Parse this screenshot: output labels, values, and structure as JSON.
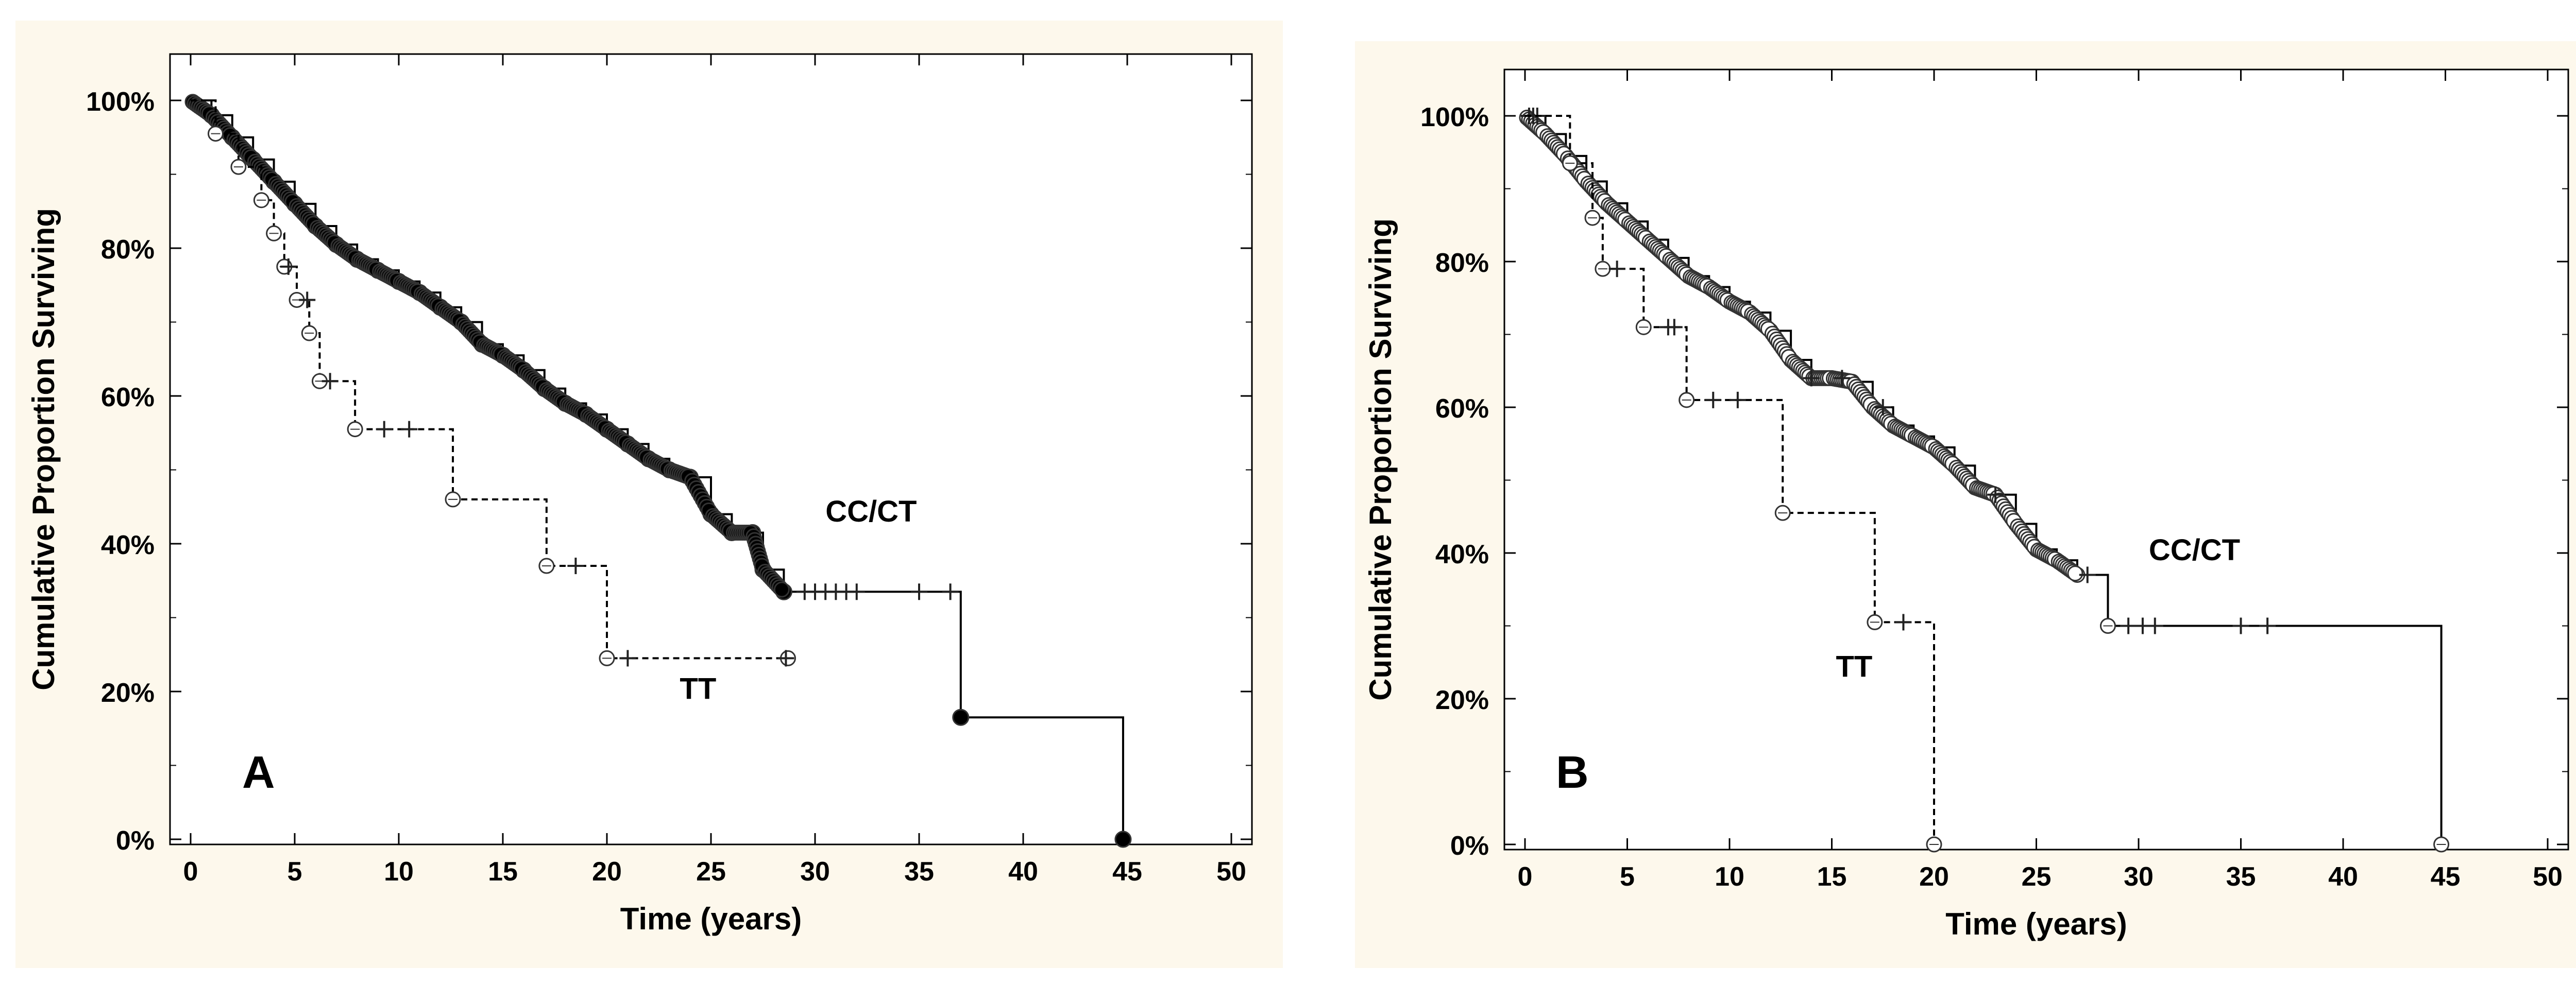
{
  "chart_data": [
    {
      "type": "line",
      "step": true,
      "panel_label": "A",
      "xlabel": "Time (years)",
      "ylabel": "Cumulative Proportion Surviving",
      "xlim": [
        0,
        50
      ],
      "ylim": [
        0,
        1.0
      ],
      "xticks": [
        "0",
        "5",
        "10",
        "15",
        "20",
        "25",
        "30",
        "35",
        "40",
        "45",
        "50"
      ],
      "yticks": [
        "0%",
        "20%",
        "40%",
        "60%",
        "80%",
        "100%"
      ],
      "background": "#fdf8ec",
      "series": [
        {
          "name": "CC/CT",
          "color": "#000000",
          "line": "solid",
          "marker": "filled-circle",
          "x": [
            0,
            1,
            2,
            3,
            4,
            5,
            6,
            7,
            8,
            9,
            10,
            11,
            12,
            13,
            14,
            15,
            16,
            17,
            18,
            19,
            20,
            21,
            22,
            23,
            24,
            25,
            26,
            27,
            27.5,
            28.5,
            37,
            44.8
          ],
          "y": [
            1.0,
            0.98,
            0.95,
            0.92,
            0.89,
            0.86,
            0.83,
            0.805,
            0.785,
            0.77,
            0.755,
            0.74,
            0.72,
            0.7,
            0.67,
            0.655,
            0.635,
            0.61,
            0.59,
            0.575,
            0.555,
            0.535,
            0.515,
            0.5,
            0.49,
            0.44,
            0.415,
            0.415,
            0.365,
            0.335,
            0.165,
            0.0
          ],
          "censored": [
            29.5,
            30,
            30.5,
            31,
            31.5,
            32,
            35,
            36.5
          ]
        },
        {
          "name": "TT",
          "color": "#000000",
          "line": "dashed",
          "marker": "open-circle",
          "x": [
            0,
            1.2,
            2.3,
            3.4,
            4.0,
            4.5,
            5.1,
            5.7,
            6.2,
            7.9,
            12.6,
            17.1,
            20.0,
            28.7
          ],
          "y": [
            1.0,
            0.955,
            0.91,
            0.865,
            0.82,
            0.775,
            0.73,
            0.685,
            0.62,
            0.555,
            0.46,
            0.37,
            0.245,
            0.245
          ],
          "censored": [
            4.7,
            5.6,
            6.7,
            9.3,
            10.5,
            18.5,
            21,
            28.6
          ]
        }
      ],
      "annotations": [
        {
          "text": "CC/CT",
          "x": 30.5,
          "y": 0.43
        },
        {
          "text": "TT",
          "x": 23.5,
          "y": 0.19
        }
      ]
    },
    {
      "type": "line",
      "step": true,
      "panel_label": "B",
      "xlabel": "Time (years)",
      "ylabel": "Cumulative Proportion Surviving",
      "xlim": [
        0,
        50
      ],
      "ylim": [
        0,
        1.0
      ],
      "xticks": [
        "0",
        "5",
        "10",
        "15",
        "20",
        "25",
        "30",
        "35",
        "40",
        "45",
        "50"
      ],
      "yticks": [
        "0%",
        "20%",
        "40%",
        "60%",
        "80%",
        "100%"
      ],
      "background": "#fdf8ec",
      "series": [
        {
          "name": "CC/CT",
          "color": "#000000",
          "line": "solid",
          "marker": "open-circle",
          "x": [
            0,
            1,
            2,
            3,
            4,
            5,
            6,
            7,
            8,
            9,
            10,
            11,
            12,
            13,
            14,
            15,
            16,
            17,
            18,
            19,
            20,
            21,
            22,
            23,
            24,
            25,
            26,
            27,
            28.5,
            44.8
          ],
          "y": [
            1.0,
            0.975,
            0.945,
            0.91,
            0.88,
            0.855,
            0.83,
            0.805,
            0.78,
            0.765,
            0.745,
            0.73,
            0.705,
            0.665,
            0.64,
            0.64,
            0.635,
            0.6,
            0.575,
            0.56,
            0.545,
            0.52,
            0.49,
            0.48,
            0.44,
            0.405,
            0.39,
            0.37,
            0.3,
            0.0
          ],
          "censored": [
            0.2,
            0.4,
            0.6,
            14,
            15.5,
            17.5,
            23,
            27.5,
            29.5,
            30.2,
            30.8,
            35,
            36.3
          ]
        },
        {
          "name": "TT",
          "color": "#000000",
          "line": "dashed",
          "marker": "open-circle",
          "x": [
            0,
            2.2,
            3.3,
            3.8,
            5.8,
            7.9,
            12.6,
            17.1,
            20.0
          ],
          "y": [
            1.0,
            0.935,
            0.86,
            0.79,
            0.71,
            0.61,
            0.455,
            0.305,
            0.0
          ],
          "censored": [
            4.5,
            7.0,
            7.3,
            9.2,
            10.4,
            18.5
          ]
        }
      ],
      "annotations": [
        {
          "text": "CC/CT",
          "x": 30.5,
          "y": 0.39
        },
        {
          "text": "TT",
          "x": 15.2,
          "y": 0.23
        }
      ]
    }
  ]
}
